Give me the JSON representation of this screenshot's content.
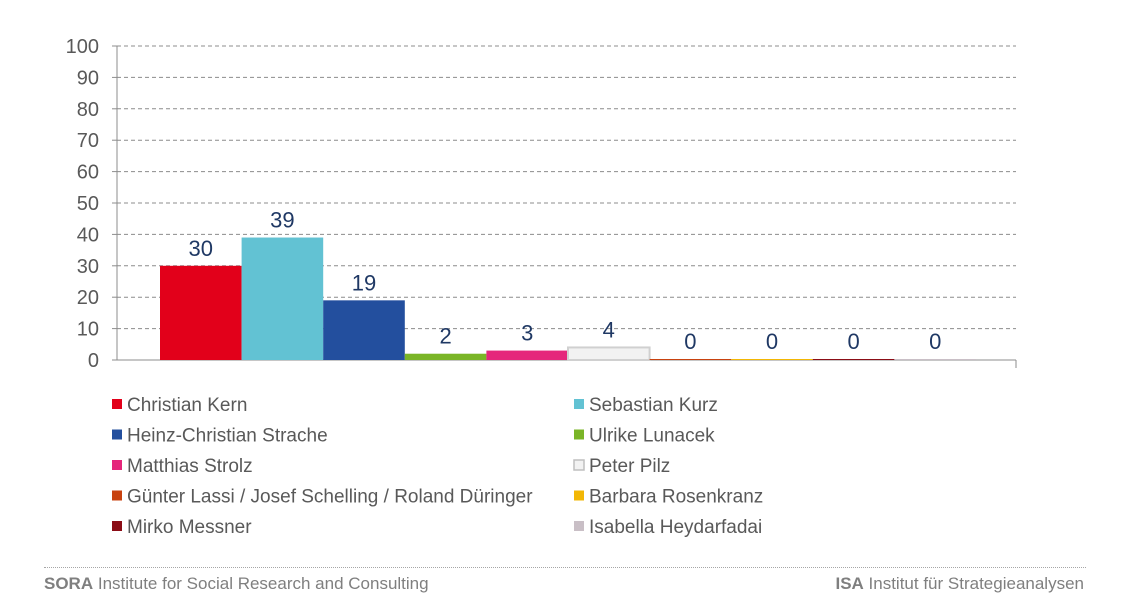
{
  "chart_data": {
    "type": "bar",
    "ylim": [
      0,
      100
    ],
    "yticks": [
      0,
      10,
      20,
      30,
      40,
      50,
      60,
      70,
      80,
      90,
      100
    ],
    "grid": true,
    "legend_position": "bottom",
    "series": [
      {
        "name": "Christian Kern",
        "value": 30,
        "label": "30",
        "color": "#e2001a"
      },
      {
        "name": "Sebastian Kurz",
        "value": 39,
        "label": "39",
        "color": "#62c2d3"
      },
      {
        "name": "Heinz-Christian Strache",
        "value": 19,
        "label": "19",
        "color": "#234f9e"
      },
      {
        "name": "Ulrike Lunacek",
        "value": 2,
        "label": "2",
        "color": "#7ab527"
      },
      {
        "name": "Matthias Strolz",
        "value": 3,
        "label": "3",
        "color": "#e5267b"
      },
      {
        "name": "Peter Pilz",
        "value": 4,
        "label": "4",
        "color": "#f2f2f2",
        "outline": "#d0d0d0"
      },
      {
        "name": "Günter Lassi / Josef Schelling / Roland Düringer",
        "value": 0,
        "label": "0",
        "color": "#c8420f"
      },
      {
        "name": "Barbara Rosenkranz",
        "value": 0,
        "label": "0",
        "color": "#f2b705"
      },
      {
        "name": "Mirko Messner",
        "value": 0,
        "label": "0",
        "color": "#8b0d16"
      },
      {
        "name": "Isabella Heydarfadai",
        "value": 0,
        "label": "0",
        "color": "#c9bfc6"
      }
    ]
  },
  "footer": {
    "left_bold": "SORA",
    "left_text": " Institute for Social Research and Consulting",
    "right_bold": "ISA",
    "right_text": " Institut für Strategieanalysen"
  }
}
